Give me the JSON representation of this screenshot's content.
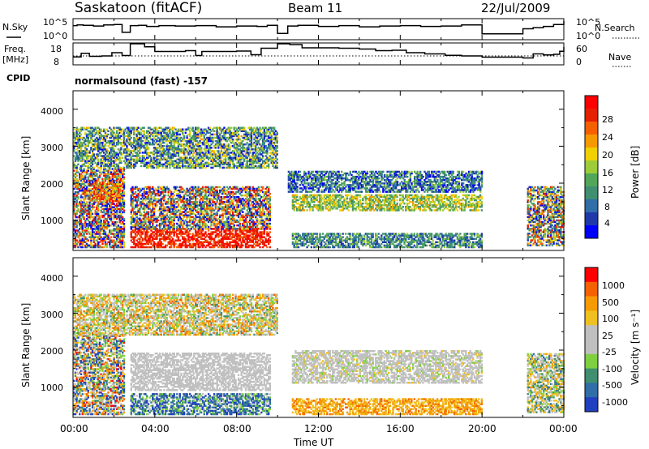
{
  "header": {
    "station": "Saskatoon (fitACF)",
    "beam": "Beam 11",
    "date": "22/Jul/2009"
  },
  "nsky_panel": {
    "left_label": "N.Sky",
    "right_label": "N.Search",
    "left_ticks": [
      "10^5",
      "10^0"
    ],
    "right_ticks": [
      "10^5",
      "10^0"
    ]
  },
  "freq_panel": {
    "left_label_line1": "Freq.",
    "left_label_line2": "[MHz]",
    "left_ticks": [
      "18",
      "8"
    ],
    "right_label": "Nave",
    "right_ticks": [
      "60",
      "0"
    ],
    "cpid_label": "CPID",
    "cpid_text": "normalsound (fast) -157"
  },
  "chart_data": [
    {
      "type": "line",
      "name": "sky-noise",
      "ylim_log10": [
        0,
        5
      ],
      "x_hours": [
        0,
        0.2,
        0.5,
        1.0,
        1.5,
        2.0,
        2.4,
        2.8,
        3.2,
        3.6,
        4.2,
        5.0,
        6.0,
        7.0,
        8.0,
        9.0,
        9.5,
        10.0,
        10.5,
        11.0,
        12.0,
        13.0,
        14.0,
        15.0,
        16.0,
        17.0,
        18.0,
        19.0,
        20.0,
        22.0,
        22.5,
        23.0,
        23.5,
        24.0
      ],
      "y_log10": [
        3.4,
        3.6,
        3.5,
        3.3,
        3.6,
        3.7,
        1.7,
        3.4,
        3.5,
        3.2,
        3.4,
        3.3,
        3.4,
        3.1,
        3.3,
        3.2,
        3.5,
        1.4,
        3.3,
        3.5,
        3.2,
        3.4,
        3.1,
        3.3,
        3.4,
        3.2,
        3.3,
        3.6,
        1.3,
        2.6,
        2.9,
        3.2,
        3.7,
        4.6
      ]
    },
    {
      "type": "line",
      "name": "frequency",
      "ylim": [
        8,
        18
      ],
      "x_hours": [
        0,
        0.4,
        0.8,
        1.4,
        1.9,
        2.4,
        2.8,
        3.5,
        4.0,
        5.5,
        6.0,
        6.3,
        8.0,
        8.7,
        9.2,
        10.0,
        10.6,
        11.2,
        13.0,
        14.0,
        14.8,
        15.6,
        16.3,
        17.2,
        18.2,
        19.0,
        20.0,
        22.0,
        22.5,
        23.0,
        23.5,
        23.8,
        24.0
      ],
      "y_mhz": [
        11.5,
        13.3,
        11.8,
        12.0,
        13.6,
        12.2,
        18.0,
        16.5,
        14.2,
        14.6,
        12.2,
        14.2,
        14.4,
        12.6,
        15.8,
        18.5,
        17.6,
        16.0,
        15.8,
        15.4,
        14.6,
        14.8,
        13.6,
        13.0,
        12.3,
        12.0,
        11.4,
        11.0,
        13.0,
        12.5,
        12.8,
        14.3,
        16.4
      ]
    },
    {
      "type": "heatmap",
      "name": "power",
      "xlabel": "Time UT",
      "ylabel": "Slant Range [km]",
      "x_ticks": [
        "00:00",
        "04:00",
        "08:00",
        "12:00",
        "16:00",
        "20:00",
        "00:00"
      ],
      "y_ticks": [
        "1000",
        "2000",
        "3000",
        "4000"
      ],
      "xlim_hours": [
        0,
        24
      ],
      "ylim_km": [
        180,
        4500
      ],
      "colorbar_label": "Power [dB]",
      "colorbar_ticks": [
        "28",
        "24",
        "20",
        "16",
        "12",
        "8",
        "4"
      ],
      "colorbar_colors": [
        "#0000ff",
        "#1f3aa8",
        "#2f6ea8",
        "#3f8f70",
        "#52a65a",
        "#9dcc38",
        "#f0d000",
        "#f59a00",
        "#f56000",
        "#e52000",
        "#ff0000"
      ],
      "bands": [
        {
          "t": [
            0.0,
            2.5
          ],
          "r": [
            250,
            2400
          ],
          "base": 0.45,
          "var": 0.55
        },
        {
          "t": [
            1.0,
            2.3
          ],
          "r": [
            1500,
            2000
          ],
          "base": 0.75,
          "var": 0.25
        },
        {
          "t": [
            2.8,
            9.6
          ],
          "r": [
            250,
            750
          ],
          "base": 0.88,
          "var": 0.12
        },
        {
          "t": [
            2.8,
            9.6
          ],
          "r": [
            750,
            1900
          ],
          "base": 0.45,
          "var": 0.5
        },
        {
          "t": [
            10.7,
            20.0
          ],
          "r": [
            1250,
            1700
          ],
          "base": 0.5,
          "var": 0.2
        },
        {
          "t": [
            10.7,
            20.0
          ],
          "r": [
            250,
            650
          ],
          "base": 0.3,
          "var": 0.2
        },
        {
          "t": [
            22.2,
            24.0
          ],
          "r": [
            300,
            1900
          ],
          "base": 0.45,
          "var": 0.45
        },
        {
          "t": [
            0.0,
            10.0
          ],
          "r": [
            2400,
            3500
          ],
          "base": 0.35,
          "var": 0.3
        },
        {
          "t": [
            10.5,
            20.0
          ],
          "r": [
            1750,
            2300
          ],
          "base": 0.25,
          "var": 0.25
        }
      ]
    },
    {
      "type": "heatmap",
      "name": "velocity",
      "xlabel": "Time UT",
      "ylabel": "Slant Range [km]",
      "x_ticks": [
        "00:00",
        "04:00",
        "08:00",
        "12:00",
        "16:00",
        "20:00",
        "00:00"
      ],
      "y_ticks": [
        "1000",
        "2000",
        "3000",
        "4000"
      ],
      "xlim_hours": [
        0,
        24
      ],
      "ylim_km": [
        180,
        4500
      ],
      "colorbar_label": "Velocity [m s⁻¹]",
      "colorbar_ticks": [
        "1000",
        "500",
        "100",
        "25",
        "-25",
        "-100",
        "-500",
        "-1000"
      ],
      "colorbar_colors": [
        "#2040c0",
        "#2f6ea8",
        "#3f8f70",
        "#7fd040",
        "#c0c0c0",
        "#c0c0c0",
        "#f0c020",
        "#f59a00",
        "#f56000",
        "#ff0000"
      ],
      "bands": [
        {
          "t": [
            0.0,
            2.5
          ],
          "r": [
            250,
            2400
          ],
          "base": 0.45,
          "var": 0.5
        },
        {
          "t": [
            2.8,
            9.6
          ],
          "r": [
            250,
            800
          ],
          "base": 0.2,
          "var": 0.25
        },
        {
          "t": [
            2.8,
            9.6
          ],
          "r": [
            900,
            1900
          ],
          "base": 0.5,
          "var": 0.1
        },
        {
          "t": [
            10.7,
            20.0
          ],
          "r": [
            1100,
            2000
          ],
          "base": 0.5,
          "var": 0.12
        },
        {
          "t": [
            10.7,
            20.0
          ],
          "r": [
            250,
            700
          ],
          "base": 0.72,
          "var": 0.12
        },
        {
          "t": [
            22.2,
            24.0
          ],
          "r": [
            300,
            1900
          ],
          "base": 0.45,
          "var": 0.3
        },
        {
          "t": [
            0.0,
            10.0
          ],
          "r": [
            2400,
            3500
          ],
          "base": 0.55,
          "var": 0.3
        }
      ]
    }
  ]
}
